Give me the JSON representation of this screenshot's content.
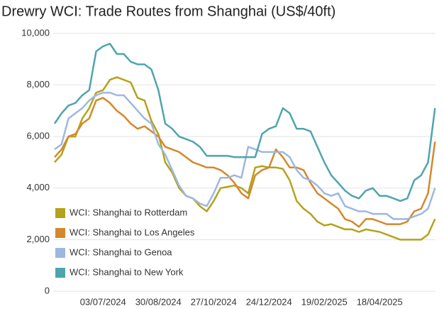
{
  "chart_data": {
    "type": "line",
    "title": "Drewry WCI: Trade Routes from Shanghai (US$/40ft)",
    "categories": [
      null,
      null,
      null,
      null,
      null,
      null,
      null,
      "03/07/2024",
      null,
      null,
      null,
      null,
      null,
      null,
      null,
      "30/08/2024",
      null,
      null,
      null,
      null,
      null,
      null,
      null,
      "27/10/2024",
      null,
      null,
      null,
      null,
      null,
      null,
      null,
      "24/12/2024",
      null,
      null,
      null,
      null,
      null,
      null,
      null,
      "19/02/2025",
      null,
      null,
      null,
      null,
      null,
      null,
      null,
      "18/04/2025",
      null,
      null,
      null,
      null,
      null,
      null,
      null,
      null
    ],
    "series": [
      {
        "name": "WCI: Shanghai to Rotterdam",
        "color": "#b5a21c",
        "values": [
          5000,
          5300,
          6000,
          6000,
          6700,
          7100,
          7700,
          7800,
          8200,
          8300,
          8200,
          8100,
          7500,
          7400,
          6600,
          6100,
          5000,
          4600,
          4000,
          3700,
          3600,
          3300,
          3100,
          3500,
          4000,
          4050,
          4100,
          4000,
          3800,
          4800,
          4850,
          4800,
          4800,
          4750,
          4300,
          3500,
          3200,
          3000,
          2700,
          2550,
          2600,
          2500,
          2400,
          2400,
          2300,
          2400,
          2350,
          2300,
          2200,
          2100,
          2000,
          2000,
          2000,
          2000,
          2200,
          2800
        ]
      },
      {
        "name": "WCI: Shanghai to Los Angeles",
        "color": "#d4882c",
        "values": [
          5200,
          5500,
          6000,
          6100,
          6500,
          6700,
          7400,
          7500,
          7300,
          7000,
          6800,
          6500,
          6300,
          6400,
          6200,
          6000,
          5600,
          5500,
          5400,
          5200,
          5000,
          4900,
          4800,
          4800,
          4700,
          4500,
          4200,
          3800,
          3600,
          4500,
          4700,
          4800,
          5500,
          5200,
          4800,
          4800,
          4700,
          4200,
          3800,
          3600,
          3400,
          3200,
          2800,
          2700,
          2500,
          2800,
          2800,
          2700,
          2600,
          2600,
          2600,
          2700,
          3100,
          3200,
          3800,
          5800
        ]
      },
      {
        "name": "WCI: Shanghai to Genoa",
        "color": "#9db8e0",
        "values": [
          5500,
          5700,
          6700,
          6900,
          7100,
          7400,
          7600,
          7700,
          7700,
          7600,
          7600,
          7300,
          7000,
          6700,
          6500,
          5700,
          5300,
          4700,
          4100,
          3700,
          3600,
          3400,
          3300,
          3800,
          4400,
          4400,
          4500,
          4400,
          5600,
          5500,
          5400,
          5400,
          5400,
          5400,
          5200,
          4700,
          4400,
          4300,
          4100,
          3800,
          3700,
          3800,
          3300,
          3200,
          3100,
          3100,
          3000,
          3000,
          3000,
          2800,
          2800,
          2800,
          2900,
          3000,
          3200,
          4000
        ]
      },
      {
        "name": "WCI: Shanghai to New York",
        "color": "#4fa5ad",
        "values": [
          6500,
          6900,
          7200,
          7300,
          7600,
          7800,
          9300,
          9500,
          9600,
          9200,
          9200,
          8900,
          8800,
          8800,
          8600,
          7800,
          6500,
          6300,
          6000,
          5900,
          5800,
          5600,
          5250,
          5250,
          5250,
          5250,
          5200,
          5200,
          5200,
          5200,
          6100,
          6300,
          6400,
          7100,
          6900,
          6300,
          6300,
          6200,
          5600,
          5000,
          4500,
          4200,
          3900,
          3700,
          3600,
          3900,
          4000,
          3700,
          3700,
          3600,
          3500,
          3600,
          4300,
          4500,
          5000,
          7100
        ]
      }
    ],
    "ylim": [
      0,
      10000
    ],
    "yticks": [
      0,
      {
        "value": 2000,
        "label": "2,000"
      },
      {
        "value": 4000,
        "label": "4,000"
      },
      {
        "value": 6000,
        "label": "6,000"
      },
      {
        "value": 8000,
        "label": "8,000"
      },
      {
        "value": 10000,
        "label": "10,000"
      }
    ],
    "grid": true,
    "legend": "bottom-left"
  }
}
